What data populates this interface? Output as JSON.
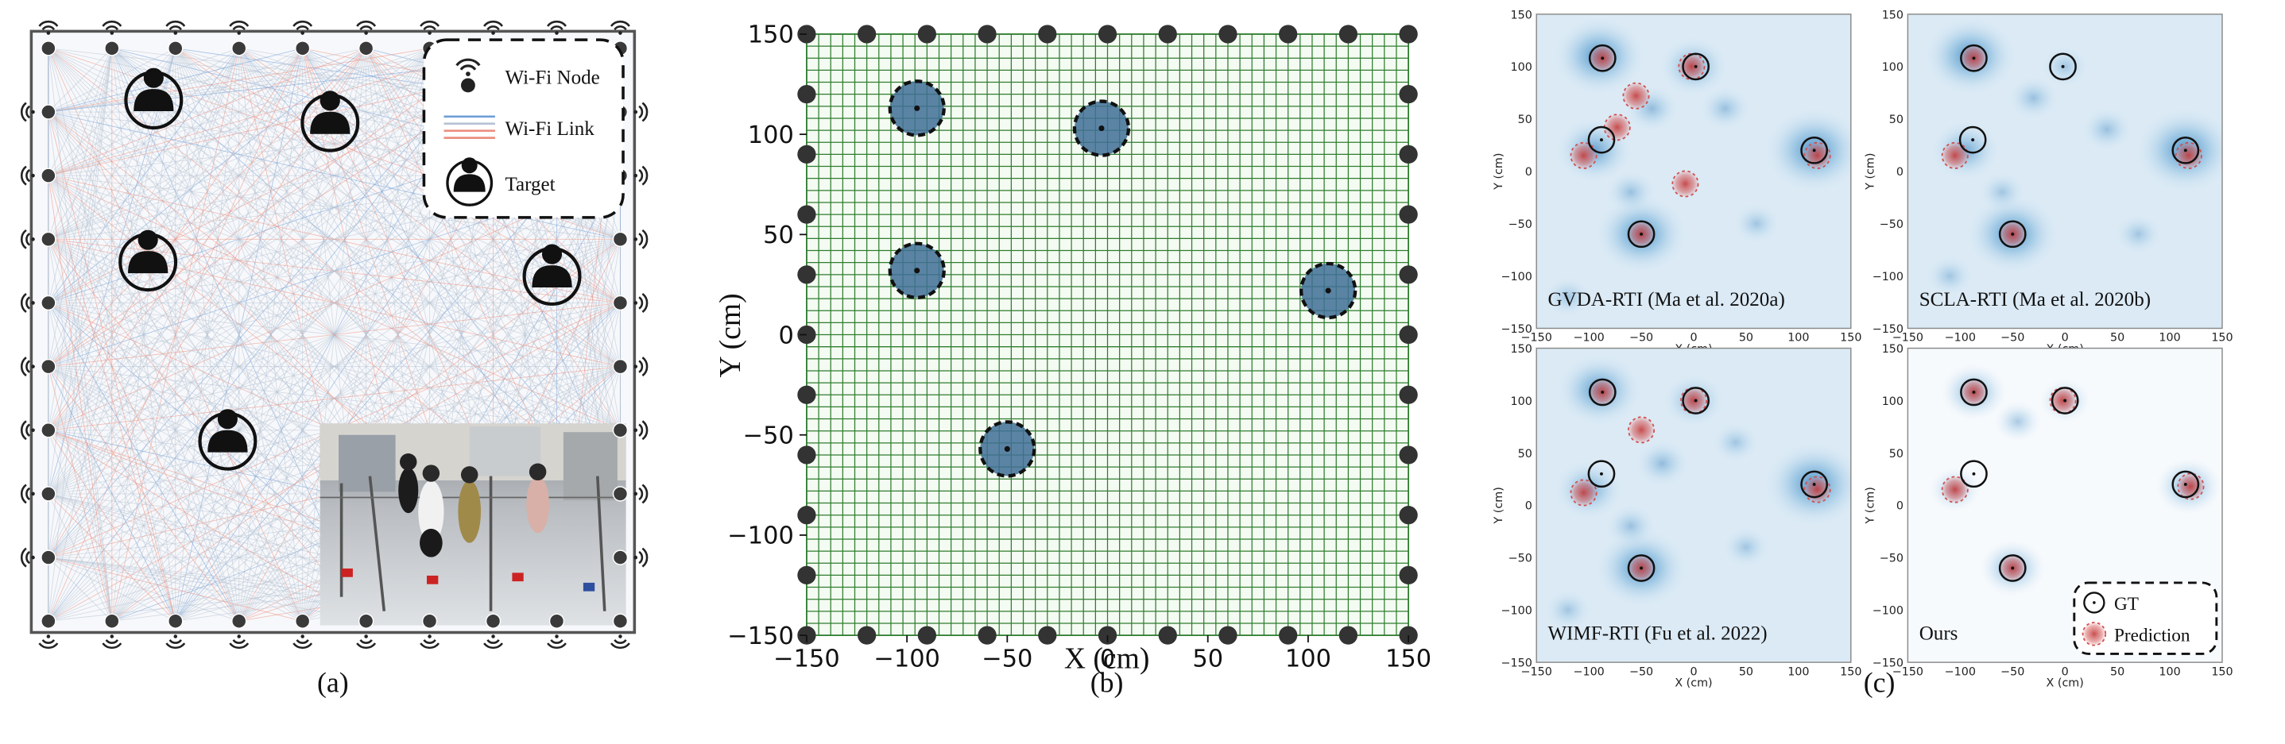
{
  "panel_a": {
    "caption": "(a)",
    "legend": {
      "node_label": "Wi-Fi Node",
      "link_label": "Wi-Fi Link",
      "target_label": "Target"
    },
    "node_count": 36,
    "target_count": 6,
    "colors": {
      "node": "#3a3a3a",
      "link_blue": "#6f9ed8",
      "link_red": "#ec8f80",
      "link_gray": "#b8c4d4",
      "target": "#111111"
    }
  },
  "panel_b": {
    "caption": "(b)",
    "chart_data": {
      "type": "scatter",
      "xlabel": "X (cm)",
      "ylabel": "Y (cm)",
      "xlim": [
        -150,
        150
      ],
      "ylim": [
        -150,
        150
      ],
      "xticks": [
        -150,
        -100,
        -50,
        0,
        50,
        100,
        150
      ],
      "yticks": [
        -150,
        -100,
        -50,
        0,
        50,
        100,
        150
      ],
      "grid": true,
      "grid_cell_cm": 6,
      "targets": [
        {
          "x": -95,
          "y": 113
        },
        {
          "x": -3,
          "y": 103
        },
        {
          "x": -95,
          "y": 32
        },
        {
          "x": 110,
          "y": 22
        },
        {
          "x": -50,
          "y": -57
        }
      ],
      "nodes_per_side": 11,
      "colors": {
        "grid": "#2f7d2f",
        "grid_bg": "#f4fbf2",
        "target_fill": "#3f6f96",
        "node": "#333333"
      }
    }
  },
  "panel_c": {
    "caption": "(c)",
    "chart_data": [
      {
        "type": "heatmap",
        "title": "GVDA-RTI (Ma et al. 2020a)",
        "xlabel": "X (cm)",
        "ylabel": "Y (cm)",
        "xlim": [
          -150,
          150
        ],
        "ylim": [
          -150,
          150
        ],
        "gt": [
          [
            -87,
            108
          ],
          [
            2,
            100
          ],
          [
            -88,
            30
          ],
          [
            115,
            20
          ],
          [
            -50,
            -60
          ]
        ],
        "pred": [
          [
            -87,
            108
          ],
          [
            -2,
            100
          ],
          [
            -55,
            72
          ],
          [
            -73,
            42
          ],
          [
            -105,
            15
          ],
          [
            -8,
            -12
          ],
          [
            118,
            15
          ],
          [
            -50,
            -60
          ]
        ],
        "blobs": [
          [
            -90,
            110,
            0.9
          ],
          [
            0,
            100,
            0.6
          ],
          [
            115,
            20,
            1
          ],
          [
            -50,
            -60,
            0.9
          ],
          [
            -95,
            20,
            0.7
          ],
          [
            -40,
            60,
            0.4
          ],
          [
            30,
            60,
            0.35
          ],
          [
            -60,
            -20,
            0.35
          ],
          [
            60,
            -50,
            0.3
          ],
          [
            -120,
            -120,
            0.3
          ]
        ]
      },
      {
        "type": "heatmap",
        "title": "SCLA-RTI (Ma et al. 2020b)",
        "xlabel": "X (cm)",
        "ylabel": "Y (cm)",
        "xlim": [
          -150,
          150
        ],
        "ylim": [
          -150,
          150
        ],
        "gt": [
          [
            -87,
            108
          ],
          [
            -2,
            100
          ],
          [
            -88,
            30
          ],
          [
            115,
            20
          ],
          [
            -50,
            -60
          ]
        ],
        "pred": [
          [
            -87,
            108
          ],
          [
            -105,
            15
          ],
          [
            118,
            15
          ],
          [
            -50,
            -60
          ]
        ],
        "blobs": [
          [
            -90,
            110,
            0.9
          ],
          [
            115,
            20,
            1
          ],
          [
            -50,
            -60,
            0.9
          ],
          [
            -95,
            20,
            0.6
          ],
          [
            -30,
            70,
            0.35
          ],
          [
            40,
            40,
            0.35
          ],
          [
            -60,
            -20,
            0.3
          ],
          [
            70,
            -60,
            0.3
          ],
          [
            0,
            100,
            0.3
          ],
          [
            -110,
            -100,
            0.3
          ]
        ]
      },
      {
        "type": "heatmap",
        "title": "WIMF-RTI (Fu et al. 2022)",
        "xlabel": "X (cm)",
        "ylabel": "Y (cm)",
        "xlim": [
          -150,
          150
        ],
        "ylim": [
          -150,
          150
        ],
        "gt": [
          [
            -87,
            108
          ],
          [
            2,
            100
          ],
          [
            -88,
            30
          ],
          [
            115,
            20
          ],
          [
            -50,
            -60
          ]
        ],
        "pred": [
          [
            -87,
            108
          ],
          [
            0,
            100
          ],
          [
            -50,
            72
          ],
          [
            -105,
            12
          ],
          [
            118,
            15
          ],
          [
            -50,
            -60
          ]
        ],
        "blobs": [
          [
            -90,
            110,
            0.8
          ],
          [
            0,
            100,
            0.5
          ],
          [
            115,
            20,
            1
          ],
          [
            -50,
            -60,
            0.9
          ],
          [
            -100,
            15,
            0.6
          ],
          [
            -30,
            40,
            0.4
          ],
          [
            40,
            60,
            0.3
          ],
          [
            -60,
            -20,
            0.35
          ],
          [
            50,
            -40,
            0.3
          ],
          [
            -120,
            -100,
            0.3
          ]
        ]
      },
      {
        "type": "heatmap",
        "title": "Ours",
        "xlabel": "X (cm)",
        "ylabel": "Y (cm)",
        "xlim": [
          -150,
          150
        ],
        "ylim": [
          -150,
          150
        ],
        "gt": [
          [
            -87,
            108
          ],
          [
            0,
            100
          ],
          [
            -87,
            30
          ],
          [
            115,
            20
          ],
          [
            -50,
            -60
          ]
        ],
        "pred": [
          [
            -87,
            108
          ],
          [
            -2,
            100
          ],
          [
            -105,
            15
          ],
          [
            120,
            18
          ],
          [
            -50,
            -60
          ]
        ],
        "blobs": [
          [
            -87,
            108,
            0.6
          ],
          [
            0,
            100,
            0.4
          ],
          [
            118,
            18,
            0.6
          ],
          [
            -50,
            -60,
            0.6
          ],
          [
            -105,
            15,
            0.4
          ],
          [
            -45,
            80,
            0.35
          ]
        ],
        "legend": {
          "gt_label": "GT",
          "pred_label": "Prediction"
        }
      }
    ],
    "tick_values": [
      -150,
      -100,
      -50,
      0,
      50,
      100,
      150
    ]
  }
}
